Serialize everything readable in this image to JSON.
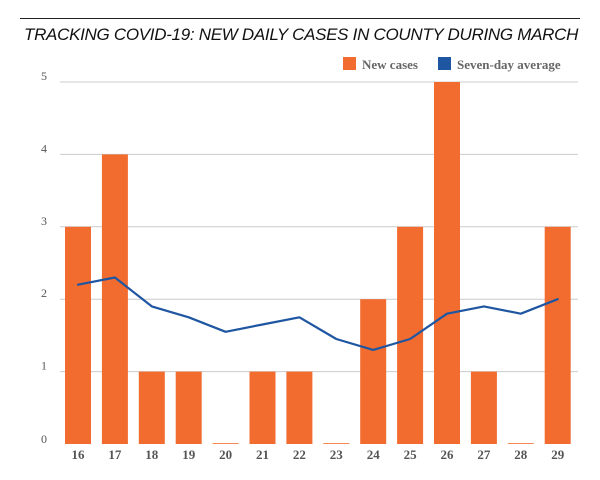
{
  "chart_data": {
    "type": "bar",
    "title": "TRACKING COVID-19: NEW DAILY CASES IN COUNTY DURING MARCH",
    "xlabel": "",
    "ylabel": "",
    "ylim": [
      0,
      5
    ],
    "yticks": [
      "0",
      "1",
      "2",
      "3",
      "4",
      "5"
    ],
    "grid": true,
    "legend_position": "top-right",
    "categories": [
      "16",
      "17",
      "18",
      "19",
      "20",
      "21",
      "22",
      "23",
      "24",
      "25",
      "26",
      "27",
      "28",
      "29"
    ],
    "series": [
      {
        "name": "New cases",
        "type": "bar",
        "color": "#f26b2f",
        "values": [
          3,
          4,
          1,
          1,
          0,
          1,
          1,
          0,
          2,
          3,
          5,
          1,
          0,
          3
        ]
      },
      {
        "name": "Seven-day average",
        "type": "line",
        "color": "#1f56a2",
        "values": [
          2.2,
          2.3,
          1.9,
          1.75,
          1.55,
          1.65,
          1.75,
          1.45,
          1.3,
          1.45,
          1.8,
          1.9,
          1.8,
          2.0
        ]
      }
    ]
  }
}
